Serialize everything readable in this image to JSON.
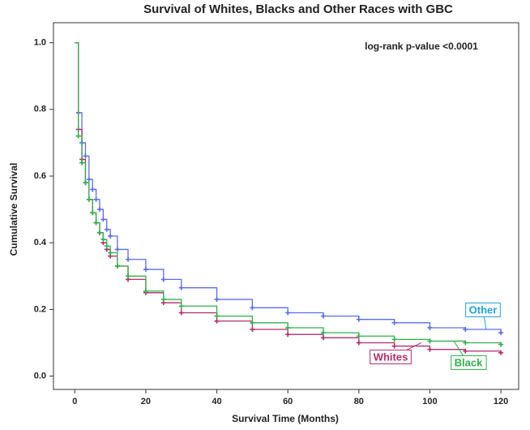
{
  "chart_data": {
    "type": "line",
    "step": true,
    "censor_marks": true,
    "title": "Survival of Whites, Blacks and Other Races with GBC",
    "annotation": "log-rank p-value <0.0001",
    "x_label": "Survival Time (Months)",
    "y_label": "Cumulative Survival",
    "x": [
      0,
      1,
      2,
      3,
      4,
      5,
      6,
      7,
      8,
      9,
      10,
      12,
      15,
      20,
      25,
      30,
      40,
      50,
      60,
      70,
      80,
      90,
      100,
      110,
      120
    ],
    "series": [
      {
        "name": "Other",
        "color": "#5a6cf2",
        "label_color": "#1fa3dc",
        "values": [
          1.0,
          0.79,
          0.7,
          0.66,
          0.59,
          0.56,
          0.53,
          0.5,
          0.47,
          0.44,
          0.42,
          0.38,
          0.35,
          0.32,
          0.29,
          0.265,
          0.23,
          0.205,
          0.19,
          0.18,
          0.17,
          0.16,
          0.145,
          0.14,
          0.13
        ]
      },
      {
        "name": "Whites",
        "color": "#b32d6a",
        "label_color": "#b32d6a",
        "values": [
          1.0,
          0.74,
          0.65,
          0.58,
          0.53,
          0.49,
          0.46,
          0.43,
          0.4,
          0.38,
          0.36,
          0.33,
          0.29,
          0.25,
          0.22,
          0.19,
          0.165,
          0.14,
          0.125,
          0.115,
          0.1,
          0.09,
          0.08,
          0.075,
          0.07
        ]
      },
      {
        "name": "Black",
        "color": "#2fb04c",
        "label_color": "#2fb04c",
        "values": [
          1.0,
          0.72,
          0.64,
          0.58,
          0.53,
          0.49,
          0.46,
          0.43,
          0.41,
          0.39,
          0.37,
          0.33,
          0.3,
          0.255,
          0.23,
          0.21,
          0.18,
          0.16,
          0.145,
          0.13,
          0.12,
          0.11,
          0.105,
          0.1,
          0.095
        ]
      }
    ],
    "xlim": [
      -6,
      125
    ],
    "ylim": [
      -0.04,
      1.06
    ],
    "xticks": [
      0,
      20,
      40,
      60,
      80,
      100,
      120
    ],
    "yticks": [
      {
        "value": 0,
        "label": "0.0"
      },
      0.2,
      0.4,
      0.6,
      0.8,
      {
        "value": 1,
        "label": "1.0"
      }
    ]
  }
}
